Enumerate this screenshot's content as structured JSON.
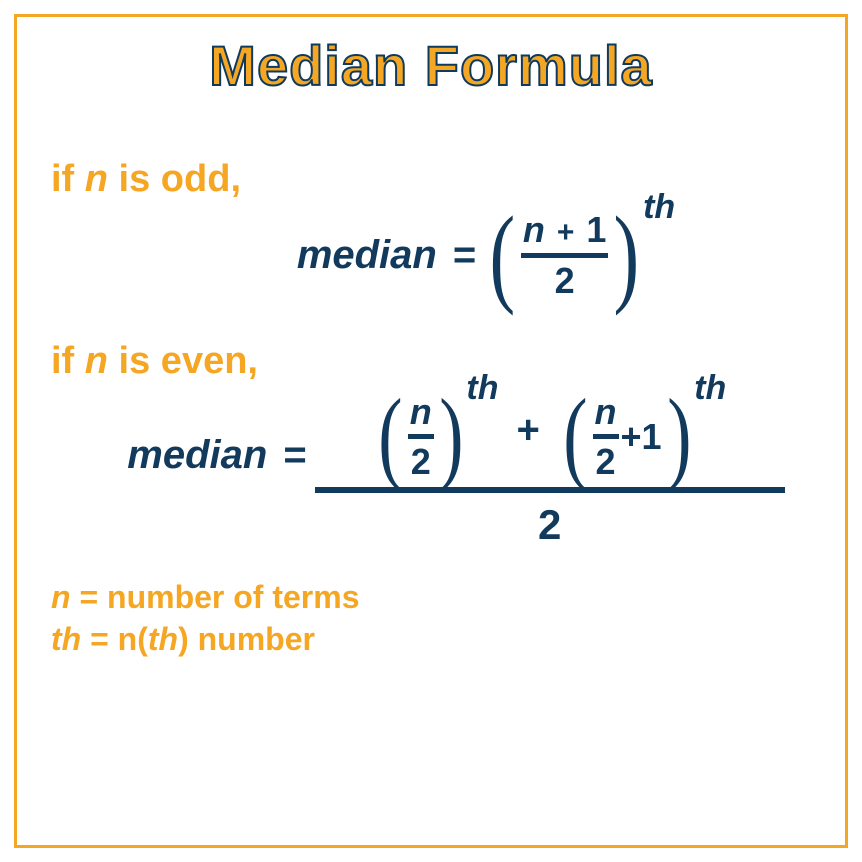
{
  "colors": {
    "accent": "#f5a623",
    "navy": "#123a5d",
    "stroke": "#0e3a5d",
    "background": "#ffffff"
  },
  "typography": {
    "title_fontsize": 56,
    "condition_fontsize": 38,
    "formula_fontsize": 40,
    "fraction_fontsize": 36,
    "legend_fontsize": 32,
    "weight": 800,
    "family": "Arial"
  },
  "title": "Median Formula",
  "odd": {
    "condition_prefix": "if ",
    "condition_var": "n",
    "condition_suffix": " is odd,",
    "lhs": "median",
    "eq": "=",
    "frac_num_var": "n",
    "frac_num_plus": "+",
    "frac_num_one": "1",
    "frac_den": "2",
    "exponent": "th"
  },
  "even": {
    "condition_prefix": "if ",
    "condition_var": "n",
    "condition_suffix": " is even,",
    "lhs": "median",
    "eq": "=",
    "term1": {
      "num": "n",
      "den": "2",
      "exponent": "th"
    },
    "plus": "+",
    "term2": {
      "num": "n",
      "den": "2",
      "plus_one": "+1",
      "exponent": "th"
    },
    "outer_den": "2"
  },
  "legend": {
    "line1_var": "n",
    "line1_rest": " = number of terms",
    "line2_var": "th",
    "line2_mid": " = n(",
    "line2_th": "th",
    "line2_end": ") number"
  }
}
